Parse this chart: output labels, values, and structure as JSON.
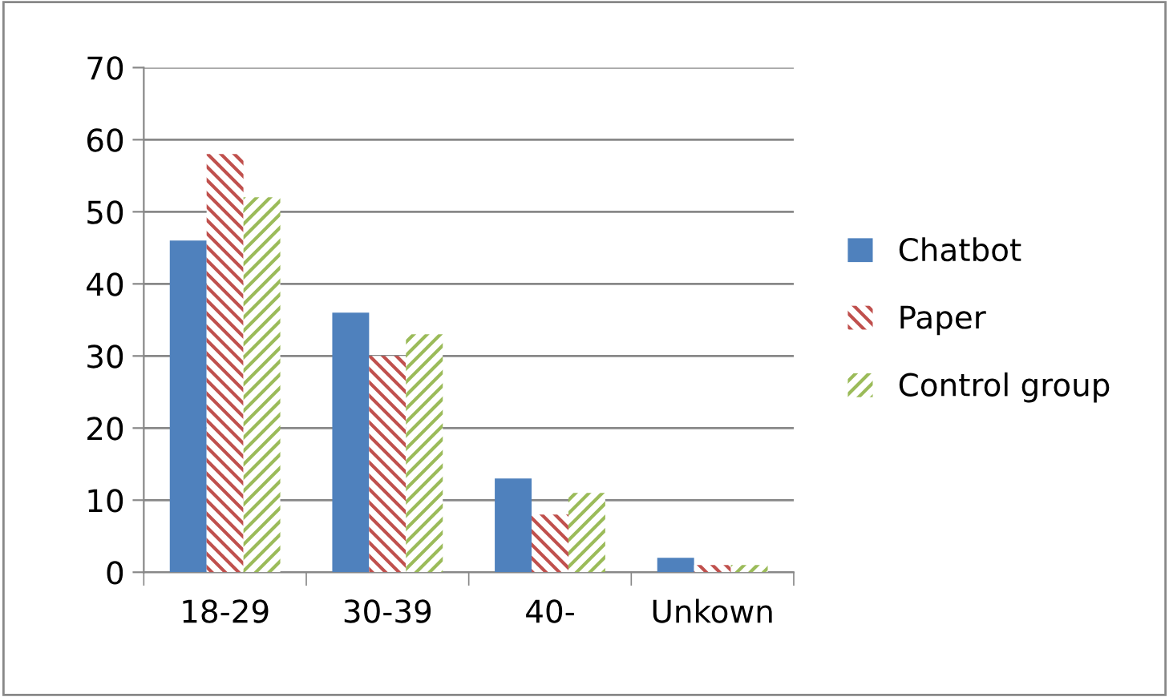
{
  "chart_data": {
    "type": "bar",
    "categories": [
      "18-29",
      "30-39",
      "40-",
      "Unkown"
    ],
    "series": [
      {
        "name": "Chatbot",
        "color": "#4f81bd",
        "values": [
          46,
          36,
          13,
          2
        ]
      },
      {
        "name": "Paper",
        "color": "#c0504d",
        "values": [
          58,
          30,
          8,
          1
        ]
      },
      {
        "name": "Control group",
        "color": "#9bbb59",
        "values": [
          52,
          33,
          11,
          1
        ]
      }
    ],
    "ylim": [
      0,
      70
    ],
    "yticks": [
      0,
      10,
      20,
      30,
      40,
      50,
      60,
      70
    ],
    "grid": "y",
    "legend": "right"
  }
}
